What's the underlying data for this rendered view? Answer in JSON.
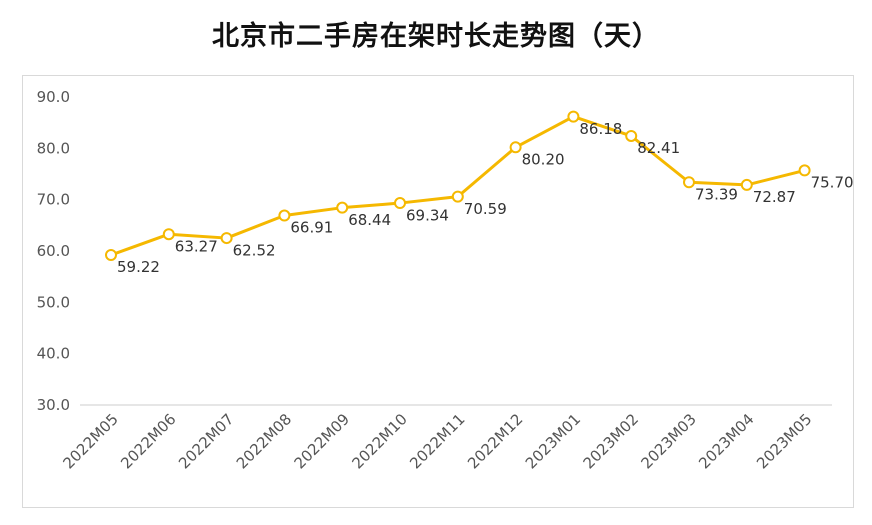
{
  "title": "北京市二手房在架时长走势图（天）",
  "colors": {
    "line": "#F5B800",
    "marker_fill": "#ffffff",
    "axis": "#cccccc"
  },
  "chart_data": {
    "type": "line",
    "title": "北京市二手房在架时长走势图（天）",
    "xlabel": "",
    "ylabel": "",
    "categories": [
      "2022M05",
      "2022M06",
      "2022M07",
      "2022M08",
      "2022M09",
      "2022M10",
      "2022M11",
      "2022M12",
      "2023M01",
      "2023M02",
      "2023M03",
      "2023M04",
      "2023M05"
    ],
    "series": [
      {
        "values": [
          59.22,
          63.27,
          62.52,
          66.91,
          68.44,
          69.34,
          70.59,
          80.2,
          86.18,
          82.41,
          73.39,
          72.87,
          75.7
        ]
      }
    ],
    "data_labels": [
      "59.22",
      "63.27",
      "62.52",
      "66.91",
      "68.44",
      "69.34",
      "70.59",
      "80.20",
      "86.18",
      "82.41",
      "73.39",
      "72.87",
      "75.70"
    ],
    "ylim": [
      30,
      90
    ],
    "yticks": [
      "30.0",
      "40.0",
      "50.0",
      "60.0",
      "70.0",
      "80.0",
      "90.0"
    ],
    "grid": false,
    "legend": "none"
  }
}
